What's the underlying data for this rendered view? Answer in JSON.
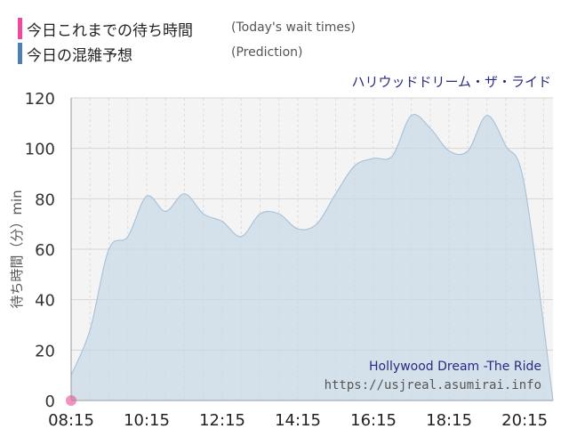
{
  "legend": [
    {
      "label": "今日これまでの待ち時間",
      "note": "(Today's wait times)",
      "color": "#f0489a"
    },
    {
      "label": "今日の混雑予想",
      "note": "(Prediction)",
      "color": "#4f7fb0"
    }
  ],
  "attraction_title_jp": "ハリウッドドリーム・ザ・ライド",
  "attraction_title_en": "Hollywood Dream -The Ride",
  "source_url": "https://usjreal.asumirai.info",
  "chart_data": {
    "type": "area",
    "title": "ハリウッドドリーム・ザ・ライド",
    "ylabel": "待ち時間（分）min",
    "xlabel": "",
    "xlim": [
      "08:15",
      "21:00"
    ],
    "ylim": [
      0,
      120
    ],
    "yticks": [
      0,
      20,
      40,
      60,
      80,
      100,
      120
    ],
    "xticks": [
      "08:15",
      "10:15",
      "12:15",
      "14:15",
      "16:15",
      "18:15",
      "20:15"
    ],
    "grid": true,
    "series": [
      {
        "name": "Prediction",
        "color": "#4f7fb0",
        "x": [
          "08:15",
          "08:45",
          "09:15",
          "09:45",
          "10:15",
          "10:45",
          "11:15",
          "11:45",
          "12:15",
          "12:45",
          "13:15",
          "13:45",
          "14:15",
          "14:45",
          "15:15",
          "15:45",
          "16:15",
          "16:45",
          "17:15",
          "17:45",
          "18:15",
          "18:45",
          "19:15",
          "19:45",
          "20:15",
          "21:00"
        ],
        "y": [
          10,
          28,
          60,
          65,
          81,
          75,
          82,
          74,
          71,
          65,
          74,
          74,
          68,
          70,
          82,
          93,
          96,
          97,
          113,
          108,
          99,
          99,
          113,
          101,
          85,
          0
        ]
      },
      {
        "name": "Today's wait times",
        "color": "#f0489a",
        "x": [
          "08:15"
        ],
        "y": [
          0
        ]
      }
    ]
  }
}
